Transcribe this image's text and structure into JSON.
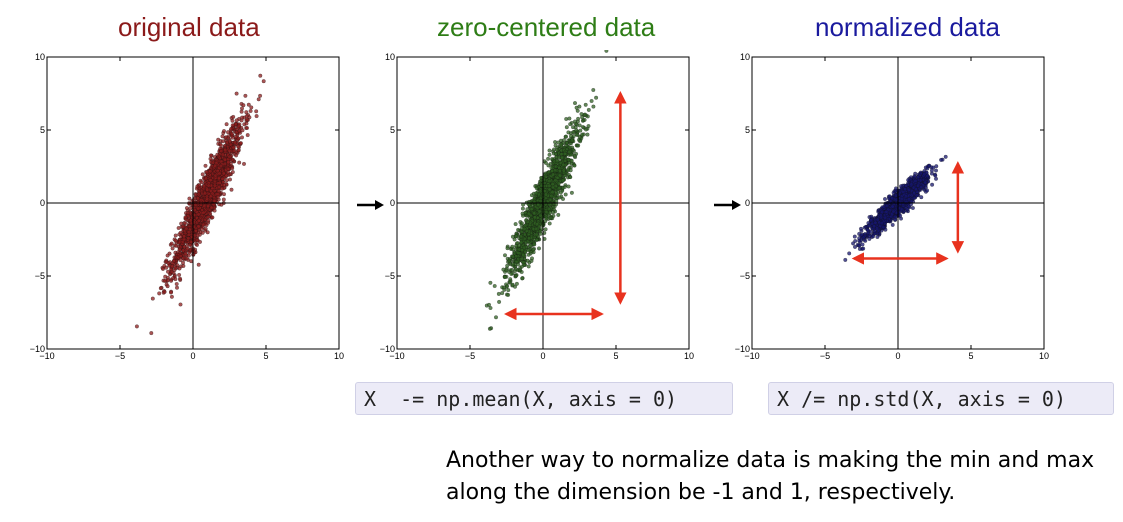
{
  "chart_data": [
    {
      "type": "scatter",
      "title": "original data",
      "title_color": "#8b1a1a",
      "point_color": "#8b1c1c",
      "xlim": [
        -10,
        10
      ],
      "ylim": [
        -10,
        10
      ],
      "xticks": [
        -10,
        -5,
        0,
        5,
        10
      ],
      "yticks": [
        -10,
        -5,
        0,
        5,
        10
      ],
      "distribution": {
        "mean": [
          1.0,
          0.5
        ],
        "std": [
          1.2,
          2.5
        ],
        "correlation": 0.93,
        "n_points": 1500
      },
      "arrows": []
    },
    {
      "type": "scatter",
      "title": "zero-centered data",
      "title_color": "#2e7d16",
      "point_color": "#2f5f22",
      "xlim": [
        -10,
        10
      ],
      "ylim": [
        -10,
        10
      ],
      "xticks": [
        -10,
        -5,
        0,
        5,
        10
      ],
      "yticks": [
        -10,
        -5,
        0,
        5,
        10
      ],
      "distribution": {
        "mean": [
          0,
          0
        ],
        "std": [
          1.2,
          2.5
        ],
        "correlation": 0.93,
        "n_points": 1500
      },
      "arrows": [
        {
          "from": [
            -2.5,
            -7.6
          ],
          "to": [
            4.0,
            -7.6
          ]
        },
        {
          "from": [
            5.3,
            7.5
          ],
          "to": [
            5.3,
            -6.8
          ]
        }
      ]
    },
    {
      "type": "scatter",
      "title": "normalized data",
      "title_color": "#1a1a9e",
      "point_color": "#16166e",
      "xlim": [
        -10,
        10
      ],
      "ylim": [
        -10,
        10
      ],
      "xticks": [
        -10,
        -5,
        0,
        5,
        10
      ],
      "yticks": [
        -10,
        -5,
        0,
        5,
        10
      ],
      "distribution": {
        "mean": [
          0,
          0
        ],
        "std": [
          1.0,
          1.0
        ],
        "correlation": 0.93,
        "n_points": 1500
      },
      "arrows": [
        {
          "from": [
            -3.0,
            -3.8
          ],
          "to": [
            3.3,
            -3.8
          ]
        },
        {
          "from": [
            4.1,
            2.7
          ],
          "to": [
            4.1,
            -3.3
          ]
        }
      ]
    }
  ],
  "code": {
    "center": "X  -= np.mean(X, axis = 0)",
    "normalize": "X /= np.std(X, axis = 0)"
  },
  "caption": "Another way to normalize data is making the min and max along the dimension be -1 and 1, respectively.",
  "colors": {
    "arrow": "#e8321e",
    "flow_arrow": "#000000"
  }
}
